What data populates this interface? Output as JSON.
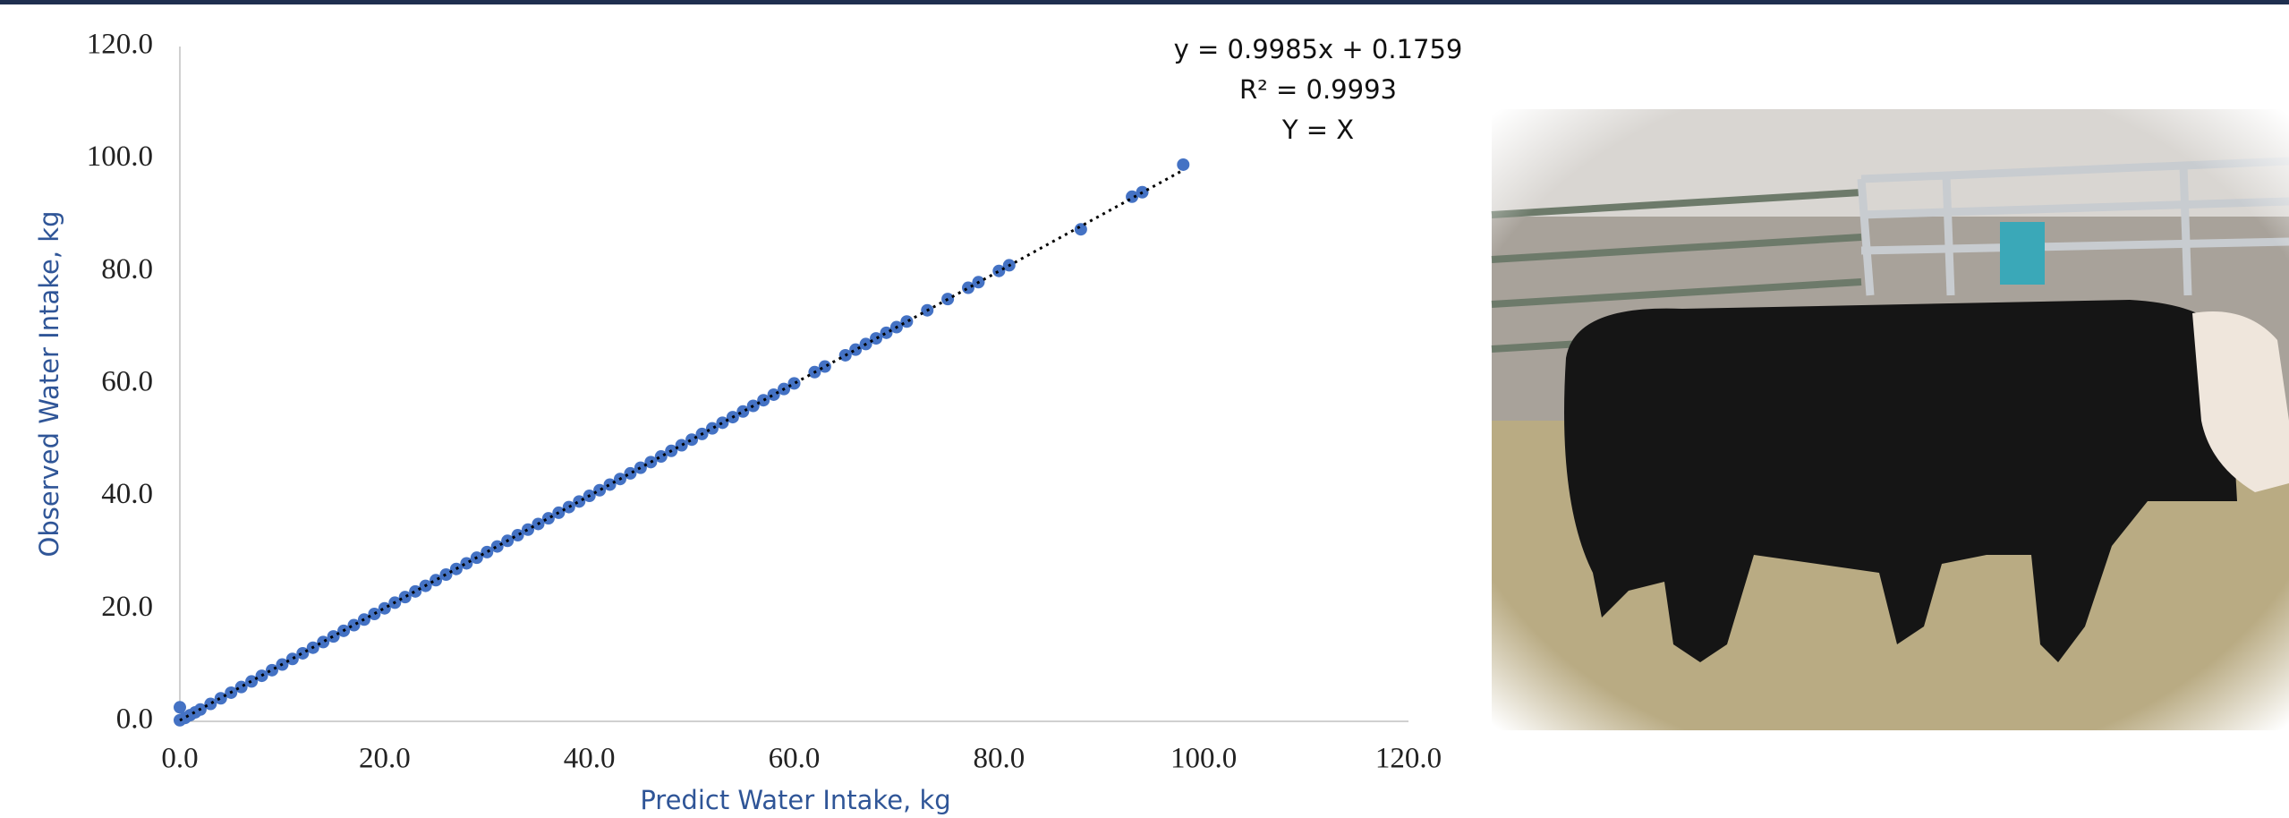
{
  "chart_data": {
    "type": "scatter",
    "x_label": "Predict Water Intake, kg",
    "y_label": "Observed Water Intake, kg",
    "annotations": [
      "y = 0.9985x + 0.1759",
      "R² = 0.9993",
      "Y = X"
    ],
    "trendline": {
      "slope": 0.9985,
      "intercept": 0.1759
    },
    "color": "#4472c4",
    "x": [
      0,
      0,
      0.5,
      1,
      1.5,
      2,
      3,
      4,
      5,
      6,
      7,
      8,
      9,
      10,
      11,
      12,
      13,
      14,
      15,
      16,
      17,
      18,
      19,
      20,
      21,
      22,
      23,
      24,
      25,
      26,
      27,
      28,
      29,
      30,
      31,
      32,
      33,
      34,
      35,
      36,
      37,
      38,
      39,
      40,
      41,
      42,
      43,
      44,
      45,
      46,
      47,
      48,
      49,
      50,
      51,
      52,
      53,
      54,
      55,
      56,
      57,
      58,
      59,
      60,
      62,
      63,
      65,
      66,
      67,
      68,
      69,
      70,
      71,
      73,
      75,
      77,
      78,
      80,
      81,
      88,
      93,
      94,
      98
    ],
    "values": [
      0.2,
      2.5,
      0.6,
      1.1,
      1.6,
      2.1,
      3.1,
      4.1,
      5.1,
      6.1,
      7.1,
      8.1,
      9.1,
      10.1,
      11.1,
      12.1,
      13.1,
      14.1,
      15.1,
      16.1,
      17.1,
      18.1,
      19.1,
      20.1,
      21.1,
      22.1,
      23.1,
      24.1,
      25.1,
      26.1,
      27.1,
      28.1,
      29.1,
      30.1,
      31.1,
      32.1,
      33.1,
      34.1,
      35.1,
      36.1,
      37.1,
      38.1,
      39.1,
      40.1,
      41.1,
      42.1,
      43.1,
      44.1,
      45.1,
      46.1,
      47.1,
      48.1,
      49.1,
      50.1,
      51.1,
      52.1,
      53.1,
      54.1,
      55.1,
      56.1,
      57.1,
      58.1,
      59.1,
      60.1,
      62.1,
      63.1,
      65.1,
      66.1,
      67.1,
      68.1,
      69.1,
      70.1,
      71.1,
      73.1,
      75.1,
      77.1,
      78.1,
      80.1,
      81.1,
      87.5,
      93.3,
      94.1,
      99.0
    ],
    "xlim": [
      0,
      120
    ],
    "ylim": [
      0,
      120
    ],
    "xticks": [
      {
        "value": 0,
        "label": "0.0"
      },
      {
        "value": 20,
        "label": "20.0"
      },
      {
        "value": 40,
        "label": "40.0"
      },
      {
        "value": 60,
        "label": "60.0"
      },
      {
        "value": 80,
        "label": "80.0"
      },
      {
        "value": 100,
        "label": "100.0"
      },
      {
        "value": 120,
        "label": "120.0"
      }
    ],
    "yticks": [
      {
        "value": 0,
        "label": "0.0"
      },
      {
        "value": 20,
        "label": "20.0"
      },
      {
        "value": 40,
        "label": "40.0"
      },
      {
        "value": 60,
        "label": "60.0"
      },
      {
        "value": 80,
        "label": "80.0"
      },
      {
        "value": 100,
        "label": "100.0"
      },
      {
        "value": 120,
        "label": "120.0"
      }
    ]
  }
}
